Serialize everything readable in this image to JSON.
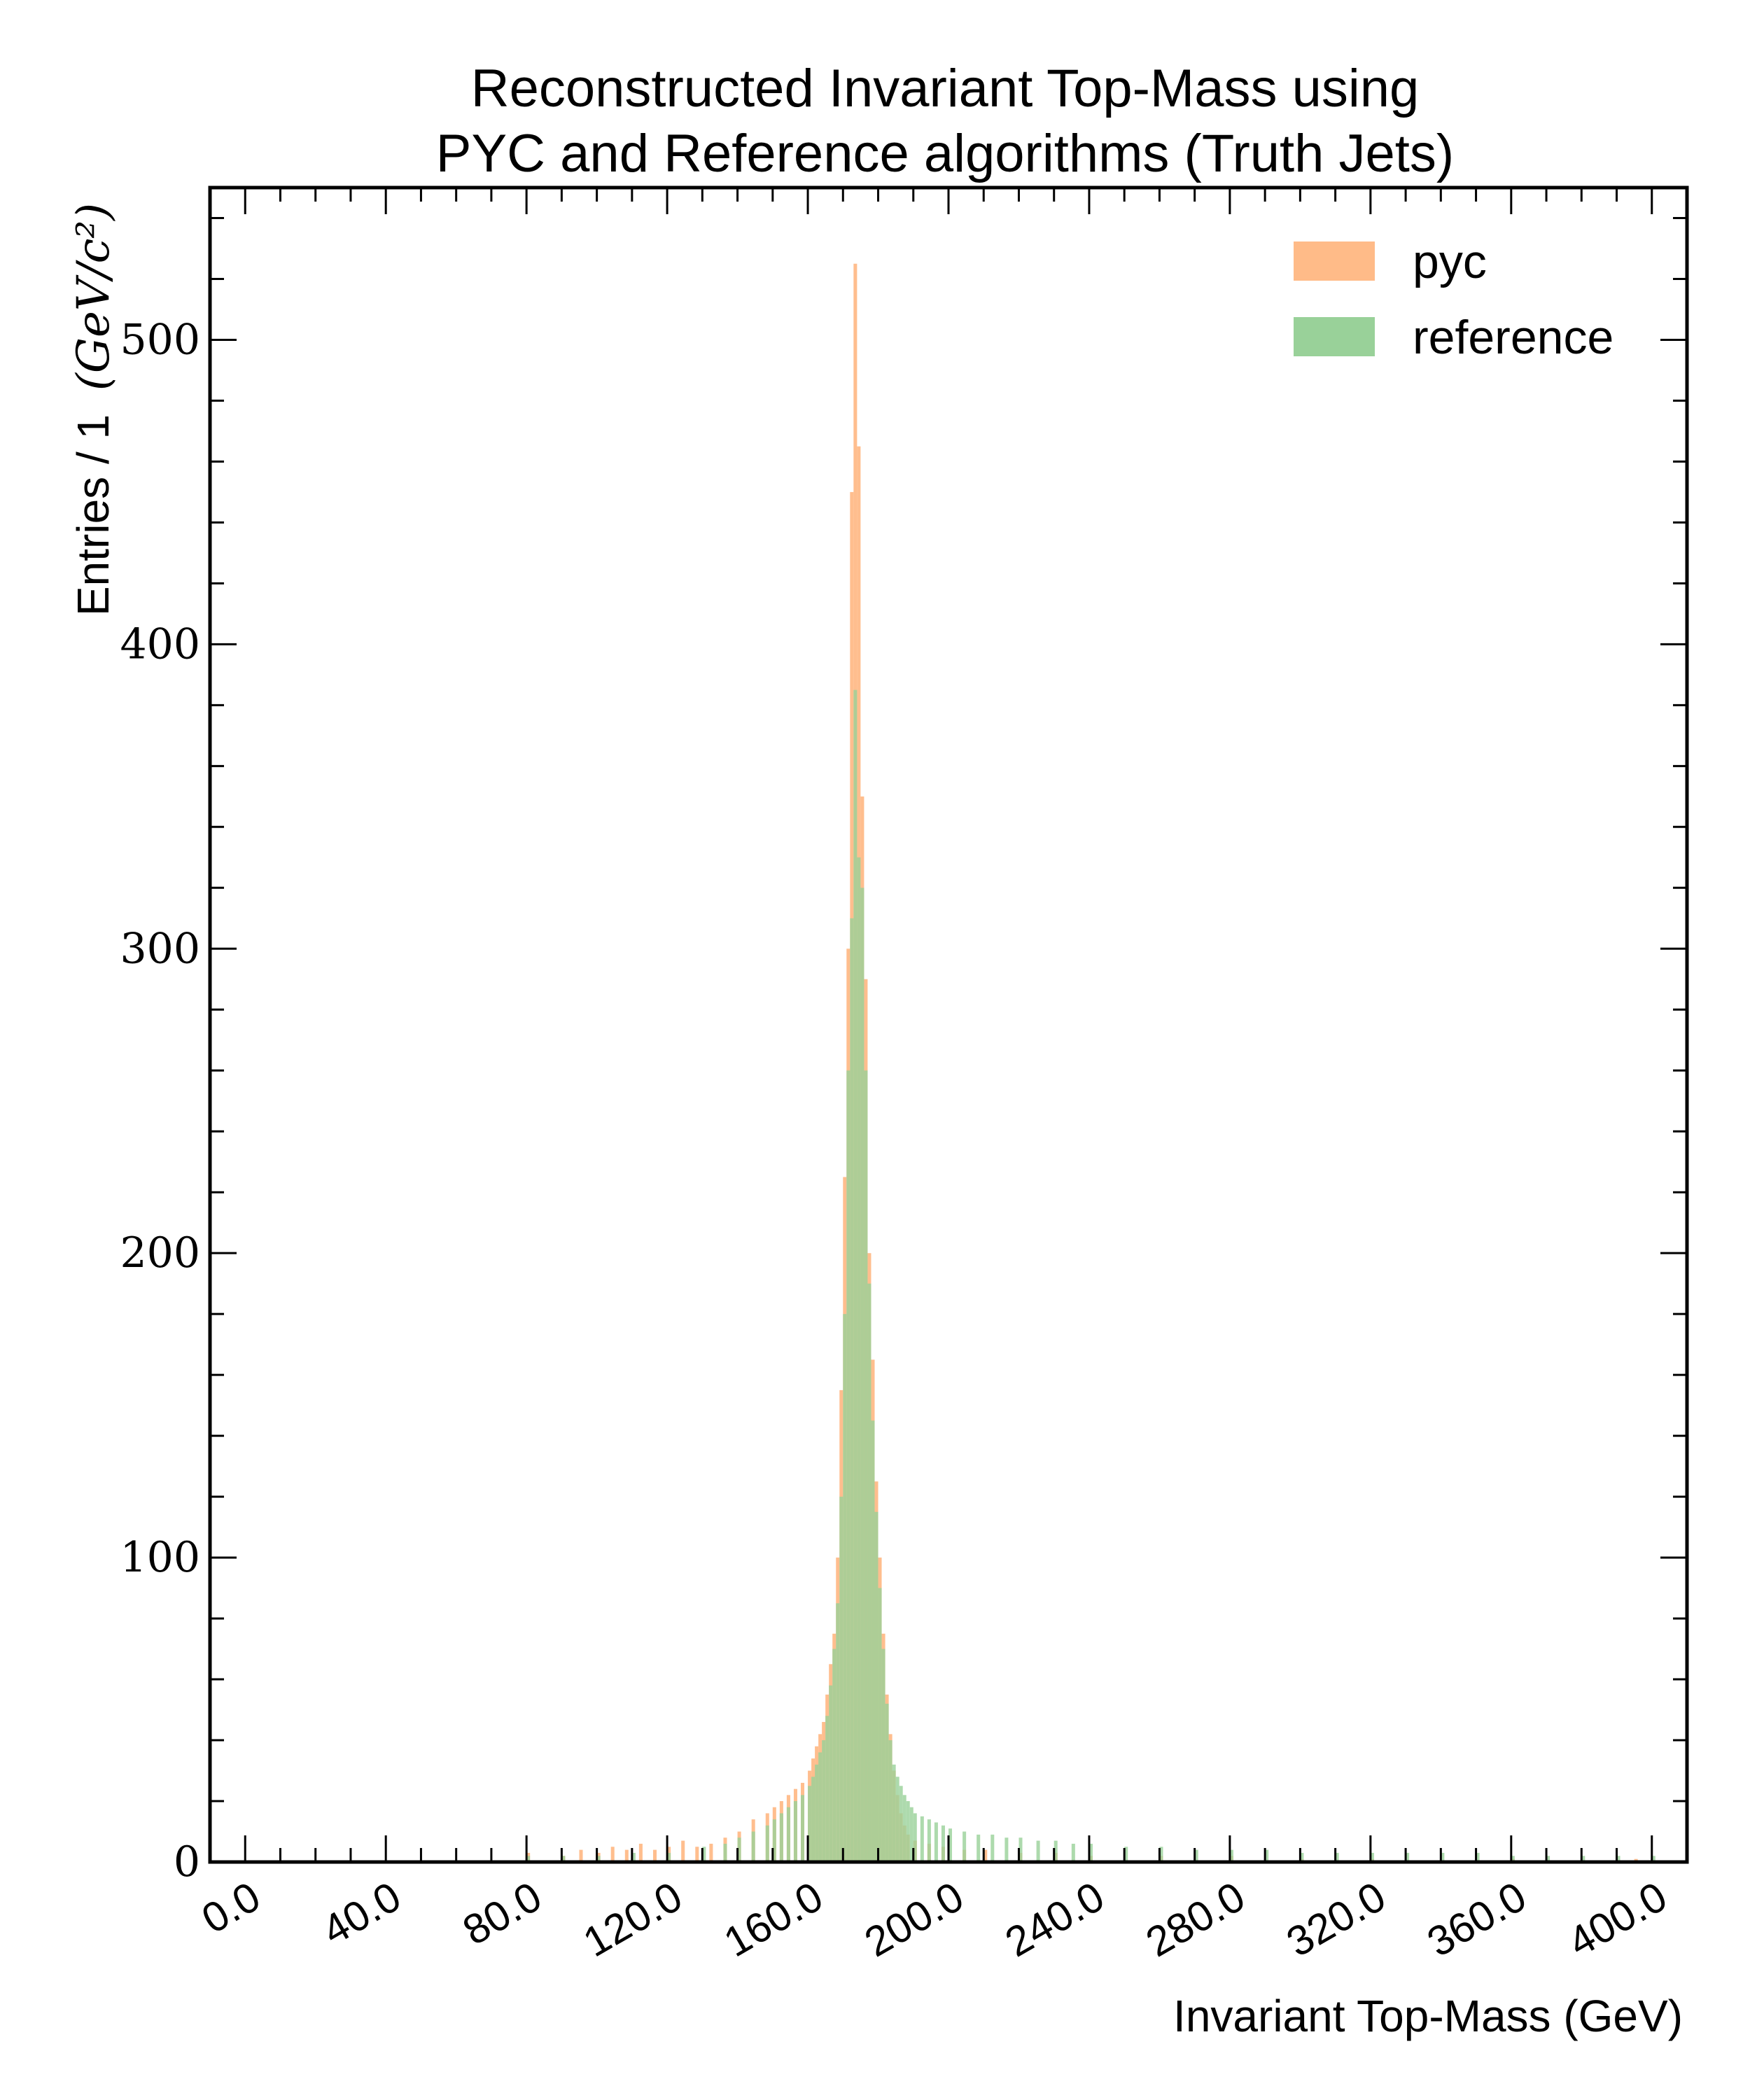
{
  "chart_data": {
    "type": "bar",
    "title_lines": [
      "Reconstructed Invariant Top-Mass using",
      "PYC and Reference algorithms (Truth Jets)"
    ],
    "xlabel": "Invariant Top-Mass (GeV)",
    "ylabel": "Entries / 1 (GeV/c²)",
    "ylabel_main": "Entries / 1",
    "ylabel_unit": "(GeV/c²)",
    "xlim": [
      -10,
      410
    ],
    "ylim": [
      0,
      550
    ],
    "x_ticks": [
      0,
      40,
      80,
      120,
      160,
      200,
      240,
      280,
      320,
      360,
      400
    ],
    "x_tick_labels": [
      "0.0",
      "40.0",
      "80.0",
      "120.0",
      "160.0",
      "200.0",
      "240.0",
      "280.0",
      "320.0",
      "360.0",
      "400.0"
    ],
    "y_ticks": [
      0,
      100,
      200,
      300,
      400,
      500
    ],
    "y_tick_labels": [
      "0",
      "100",
      "200",
      "300",
      "400",
      "500"
    ],
    "bin_width": 1,
    "legend_position": "top-right",
    "series": [
      {
        "name": "pyc",
        "color": "#ffbb88",
        "points": [
          [
            80,
            3
          ],
          [
            90,
            2
          ],
          [
            95,
            4
          ],
          [
            100,
            3
          ],
          [
            104,
            5
          ],
          [
            108,
            4
          ],
          [
            112,
            6
          ],
          [
            116,
            4
          ],
          [
            120,
            5
          ],
          [
            124,
            7
          ],
          [
            128,
            5
          ],
          [
            132,
            6
          ],
          [
            136,
            8
          ],
          [
            140,
            10
          ],
          [
            144,
            14
          ],
          [
            148,
            16
          ],
          [
            150,
            18
          ],
          [
            152,
            20
          ],
          [
            154,
            22
          ],
          [
            156,
            24
          ],
          [
            158,
            26
          ],
          [
            160,
            30
          ],
          [
            161,
            34
          ],
          [
            162,
            38
          ],
          [
            163,
            42
          ],
          [
            164,
            46
          ],
          [
            165,
            55
          ],
          [
            166,
            65
          ],
          [
            167,
            75
          ],
          [
            168,
            100
          ],
          [
            169,
            155
          ],
          [
            170,
            225
          ],
          [
            171,
            300
          ],
          [
            172,
            450
          ],
          [
            173,
            525
          ],
          [
            174,
            465
          ],
          [
            175,
            350
          ],
          [
            176,
            290
          ],
          [
            177,
            200
          ],
          [
            178,
            165
          ],
          [
            179,
            125
          ],
          [
            180,
            100
          ],
          [
            181,
            75
          ],
          [
            182,
            55
          ],
          [
            183,
            42
          ],
          [
            184,
            30
          ],
          [
            185,
            22
          ],
          [
            186,
            16
          ],
          [
            187,
            12
          ],
          [
            188,
            9
          ],
          [
            190,
            7
          ],
          [
            194,
            6
          ],
          [
            198,
            5
          ],
          [
            204,
            4
          ],
          [
            210,
            4
          ],
          [
            220,
            3
          ],
          [
            230,
            3
          ],
          [
            240,
            2
          ],
          [
            260,
            2
          ],
          [
            280,
            2
          ],
          [
            300,
            1
          ],
          [
            320,
            1
          ],
          [
            360,
            1
          ],
          [
            395,
            1
          ]
        ]
      },
      {
        "name": "reference",
        "color": "#99d199",
        "points": [
          [
            80,
            2
          ],
          [
            90,
            2
          ],
          [
            100,
            2
          ],
          [
            110,
            3
          ],
          [
            120,
            3
          ],
          [
            130,
            5
          ],
          [
            136,
            6
          ],
          [
            140,
            8
          ],
          [
            144,
            10
          ],
          [
            148,
            12
          ],
          [
            150,
            14
          ],
          [
            152,
            16
          ],
          [
            154,
            18
          ],
          [
            156,
            20
          ],
          [
            158,
            22
          ],
          [
            160,
            25
          ],
          [
            161,
            28
          ],
          [
            162,
            32
          ],
          [
            163,
            36
          ],
          [
            164,
            40
          ],
          [
            165,
            48
          ],
          [
            166,
            58
          ],
          [
            167,
            70
          ],
          [
            168,
            85
          ],
          [
            169,
            120
          ],
          [
            170,
            180
          ],
          [
            171,
            260
          ],
          [
            172,
            310
          ],
          [
            173,
            385
          ],
          [
            174,
            330
          ],
          [
            175,
            320
          ],
          [
            176,
            260
          ],
          [
            177,
            190
          ],
          [
            178,
            145
          ],
          [
            179,
            115
          ],
          [
            180,
            90
          ],
          [
            181,
            70
          ],
          [
            182,
            52
          ],
          [
            183,
            40
          ],
          [
            184,
            32
          ],
          [
            185,
            28
          ],
          [
            186,
            25
          ],
          [
            187,
            22
          ],
          [
            188,
            20
          ],
          [
            189,
            18
          ],
          [
            190,
            16
          ],
          [
            192,
            15
          ],
          [
            194,
            14
          ],
          [
            196,
            13
          ],
          [
            198,
            12
          ],
          [
            200,
            11
          ],
          [
            204,
            10
          ],
          [
            208,
            9
          ],
          [
            212,
            9
          ],
          [
            216,
            8
          ],
          [
            220,
            8
          ],
          [
            225,
            7
          ],
          [
            230,
            7
          ],
          [
            235,
            6
          ],
          [
            240,
            6
          ],
          [
            250,
            5
          ],
          [
            260,
            5
          ],
          [
            270,
            4
          ],
          [
            280,
            4
          ],
          [
            290,
            4
          ],
          [
            300,
            3
          ],
          [
            310,
            3
          ],
          [
            320,
            3
          ],
          [
            330,
            3
          ],
          [
            340,
            3
          ],
          [
            350,
            3
          ],
          [
            360,
            2
          ],
          [
            370,
            2
          ],
          [
            380,
            2
          ],
          [
            390,
            2
          ],
          [
            400,
            2
          ]
        ]
      }
    ]
  }
}
